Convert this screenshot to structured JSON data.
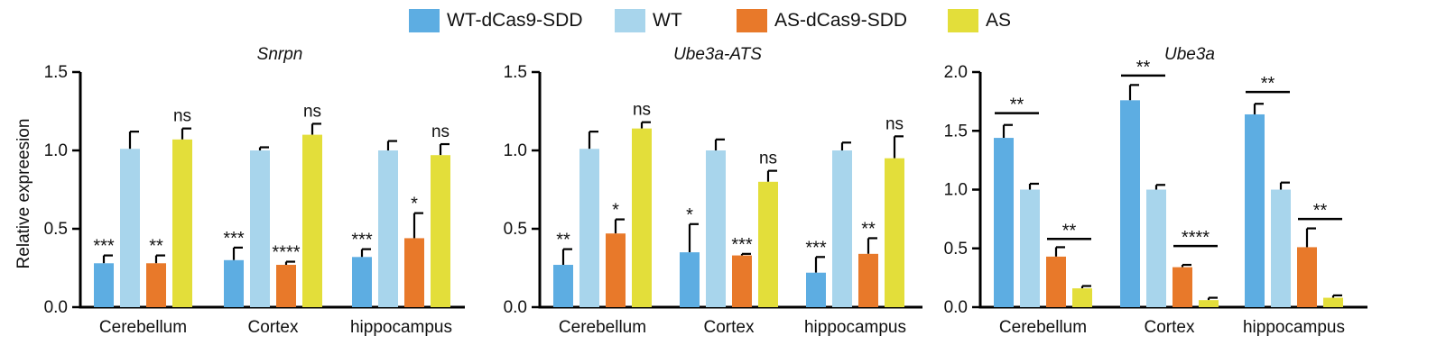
{
  "legend": [
    {
      "name": "WT-dCas9-SDD",
      "color": "#5dade2"
    },
    {
      "name": "WT",
      "color": "#a8d5ec"
    },
    {
      "name": "AS-dCas9-SDD",
      "color": "#e8792a"
    },
    {
      "name": "AS",
      "color": "#e3de3a"
    }
  ],
  "chart_data": [
    {
      "type": "bar",
      "title": "Snrpn",
      "ylabel": "Relative expreesion",
      "xlabel": "",
      "ylim": [
        0,
        1.5
      ],
      "yticks": [
        "0.0",
        "0.5",
        "1.0",
        "1.5"
      ],
      "yticks_values": [
        0,
        0.5,
        1.0,
        1.5
      ],
      "categories": [
        "Cerebellum",
        "Cortex",
        "hippocampus"
      ],
      "series": [
        {
          "name": "WT-dCas9-SDD",
          "values": [
            0.28,
            0.3,
            0.32
          ],
          "errors": [
            0.05,
            0.08,
            0.05
          ],
          "sig": [
            "***",
            "***",
            "***"
          ]
        },
        {
          "name": "WT",
          "values": [
            1.01,
            1.0,
            1.0
          ],
          "errors": [
            0.11,
            0.02,
            0.06
          ],
          "sig": [
            "",
            "",
            ""
          ]
        },
        {
          "name": "AS-dCas9-SDD",
          "values": [
            0.28,
            0.27,
            0.44
          ],
          "errors": [
            0.05,
            0.02,
            0.16
          ],
          "sig": [
            "**",
            "****",
            "*"
          ]
        },
        {
          "name": "AS",
          "values": [
            1.07,
            1.1,
            0.97
          ],
          "errors": [
            0.07,
            0.07,
            0.07
          ],
          "sig": [
            "ns",
            "ns",
            "ns"
          ]
        }
      ],
      "brackets": []
    },
    {
      "type": "bar",
      "title": "Ube3a-ATS",
      "ylabel": "",
      "xlabel": "",
      "ylim": [
        0,
        1.5
      ],
      "yticks": [
        "0.0",
        "0.5",
        "1.0",
        "1.5"
      ],
      "yticks_values": [
        0,
        0.5,
        1.0,
        1.5
      ],
      "categories": [
        "Cerebellum",
        "Cortex",
        "hippocampus"
      ],
      "series": [
        {
          "name": "WT-dCas9-SDD",
          "values": [
            0.27,
            0.35,
            0.22
          ],
          "errors": [
            0.1,
            0.18,
            0.1
          ],
          "sig": [
            "**",
            "*",
            "***"
          ]
        },
        {
          "name": "WT",
          "values": [
            1.01,
            1.0,
            1.0
          ],
          "errors": [
            0.11,
            0.07,
            0.05
          ],
          "sig": [
            "",
            "",
            ""
          ]
        },
        {
          "name": "AS-dCas9-SDD",
          "values": [
            0.47,
            0.33,
            0.34
          ],
          "errors": [
            0.09,
            0.01,
            0.1
          ],
          "sig": [
            "*",
            "***",
            "**"
          ]
        },
        {
          "name": "AS",
          "values": [
            1.14,
            0.8,
            0.95
          ],
          "errors": [
            0.04,
            0.07,
            0.14
          ],
          "sig": [
            "ns",
            "ns",
            "ns"
          ]
        }
      ],
      "brackets": []
    },
    {
      "type": "bar",
      "title": "Ube3a",
      "ylabel": "",
      "xlabel": "",
      "ylim": [
        0,
        2.0
      ],
      "yticks": [
        "0.0",
        "0.5",
        "1.0",
        "1.5",
        "2.0"
      ],
      "yticks_values": [
        0,
        0.5,
        1.0,
        1.5,
        2.0
      ],
      "categories": [
        "Cerebellum",
        "Cortex",
        "hippocampus"
      ],
      "series": [
        {
          "name": "WT-dCas9-SDD",
          "values": [
            1.44,
            1.76,
            1.64
          ],
          "errors": [
            0.11,
            0.13,
            0.09
          ],
          "sig": [
            "",
            "",
            ""
          ]
        },
        {
          "name": "WT",
          "values": [
            1.0,
            1.0,
            1.0
          ],
          "errors": [
            0.05,
            0.04,
            0.06
          ],
          "sig": [
            "",
            "",
            ""
          ]
        },
        {
          "name": "AS-dCas9-SDD",
          "values": [
            0.43,
            0.34,
            0.51
          ],
          "errors": [
            0.08,
            0.02,
            0.16
          ],
          "sig": [
            "",
            "",
            ""
          ]
        },
        {
          "name": "AS",
          "values": [
            0.16,
            0.06,
            0.08
          ],
          "errors": [
            0.02,
            0.02,
            0.02
          ],
          "sig": [
            "",
            "",
            ""
          ]
        }
      ],
      "brackets": [
        {
          "category": 0,
          "from": 0,
          "to": 1,
          "label": "**",
          "y": 1.65
        },
        {
          "category": 0,
          "from": 2,
          "to": 3,
          "label": "**",
          "y": 0.58
        },
        {
          "category": 1,
          "from": 0,
          "to": 1,
          "label": "**",
          "y": 1.97
        },
        {
          "category": 1,
          "from": 2,
          "to": 3,
          "label": "****",
          "y": 0.52
        },
        {
          "category": 2,
          "from": 0,
          "to": 1,
          "label": "**",
          "y": 1.83
        },
        {
          "category": 2,
          "from": 2,
          "to": 3,
          "label": "**",
          "y": 0.75
        }
      ]
    }
  ]
}
